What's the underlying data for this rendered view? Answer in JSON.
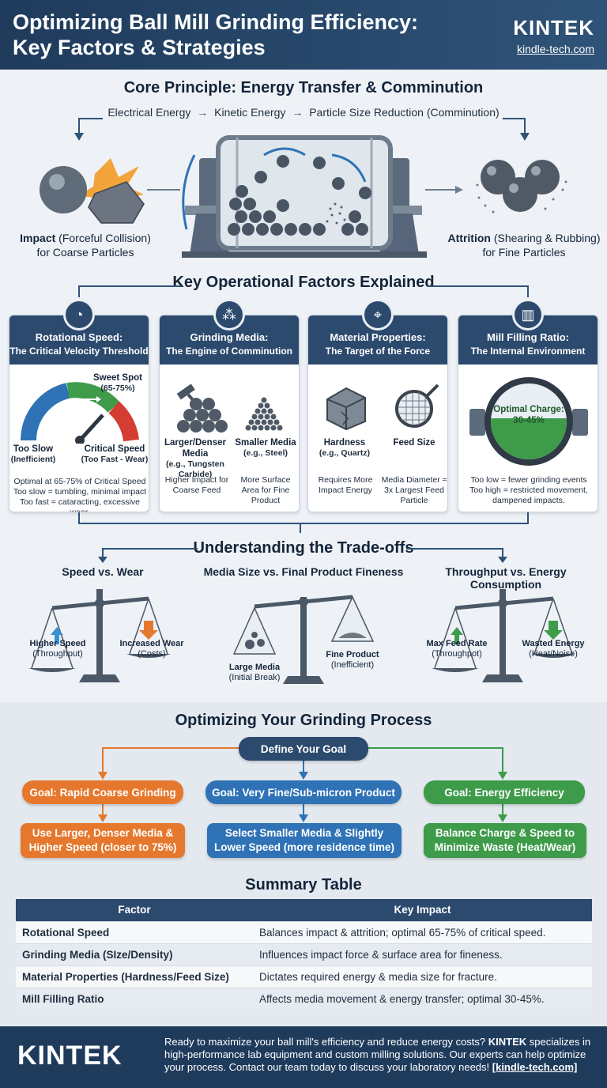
{
  "header": {
    "title_line1": "Optimizing Ball Mill Grinding Efficiency:",
    "title_line2": "Key Factors & Strategies",
    "brand": "KINTEK",
    "site": "kindle-tech.com"
  },
  "core": {
    "title": "Core Principle: Energy Transfer & Comminution",
    "chain": [
      "Electrical Energy",
      "Kinetic Energy",
      "Particle Size Reduction (Comminution)"
    ],
    "impact_bold": "Impact",
    "impact_rest": " (Forceful Collision)",
    "impact_line2": "for Coarse Particles",
    "attrition_bold": "Attrition",
    "attrition_rest": " (Shearing & Rubbing)",
    "attrition_line2": "for Fine Particles"
  },
  "factors": {
    "title": "Key Operational Factors Explained",
    "speed": {
      "title": "Rotational Speed:",
      "subtitle": "The Critical Velocity Threshold",
      "sweet": "Sweet Spot",
      "sweet_range": "(65-75%)",
      "slow": "Too Slow",
      "slow_sub": "(Inefficient)",
      "critical": "Critical Speed",
      "critical_sub": "(Too Fast - Wear)",
      "note1": "Optimal at 65-75% of Critical Speed",
      "note2": "Too slow = tumbling, minimal impact",
      "note3": "Too fast = cataracting, excessive wear."
    },
    "media": {
      "title": "Grinding Media:",
      "subtitle": "The Engine of Comminution",
      "large": "Larger/Denser Media",
      "large_sub": "(e.g., Tungsten Carbide)",
      "small": "Smaller Media",
      "small_sub": "(e.g., Steel)",
      "note_left": "Higher Impact for Coarse Feed",
      "note_right": "More Surface Area for Fine Product"
    },
    "material": {
      "title": "Material Properties:",
      "subtitle": "The Target of the Force",
      "hardness": "Hardness",
      "hardness_sub": "(e.g., Quartz)",
      "feed": "Feed Size",
      "note_left": "Requires More Impact Energy",
      "note_right": "Media Diameter ≈ 3x Largest Feed Particle"
    },
    "filling": {
      "title": "Mill Filling Ratio:",
      "subtitle": "The Internal Environment",
      "charge": "Optimal Charge:",
      "charge_range": "30-45%",
      "note1": "Too low = fewer grinding events",
      "note2": "Too high = restricted movement,",
      "note3": "dampened impacts."
    }
  },
  "tradeoffs": {
    "title": "Understanding the Trade-offs",
    "speed_wear": {
      "title": "Speed vs. Wear",
      "left": "Higher Speed",
      "left_sub": "(Throughput)",
      "right": "Increased Wear",
      "right_sub": "(Costs)"
    },
    "media_fine": {
      "title": "Media Size vs. Final Product Fineness",
      "left": "Large Media",
      "left_sub": "(Initial Break)",
      "right": "Fine Product",
      "right_sub": "(Inefficient)"
    },
    "throughput_energy": {
      "title": "Throughput vs. Energy Consumption",
      "left": "Max Feed Rate",
      "left_sub": "(Throughpot)",
      "right": "Wasted Energy",
      "right_sub": "(Heat/Noise)"
    }
  },
  "optimize": {
    "title": "Optimizing Your Grinding Process",
    "goal": "Define Your Goal",
    "goal1": "Goal: Rapid Coarse Grinding",
    "action1_l1": "Use Larger, Denser Media &",
    "action1_l2": "Higher Speed (closer to 75%)",
    "goal2": "Goal: Very Fine/Sub-micron Product",
    "action2_l1": "Select Smaller Media & Slightly",
    "action2_l2": "Lower Speed (more residence time)",
    "goal3": "Goal: Energy Efficiency",
    "action3_l1": "Balance Charge & Speed to",
    "action3_l2": "Minimize Waste (Heat/Wear)"
  },
  "summary": {
    "title": "Summary Table",
    "headers": [
      "Factor",
      "Key Impact"
    ],
    "rows": [
      [
        "Rotational Speed",
        "Balances impact & attrition; optimal 65-75% of critical speed."
      ],
      [
        "Grinding Media (SIze/Density)",
        "Influences impact force & surface area for fineness."
      ],
      [
        "Material Properties (Hardness/Feed Size)",
        "Dictates required energy & media size for fracture."
      ],
      [
        "Mill Filling Ratio",
        "Affects media movement & energy transfer; optimal 30-45%."
      ]
    ]
  },
  "footer": {
    "brand": "KINTEK",
    "text1": "Ready to maximize your ball mill's efficiency and reduce energy costs? ",
    "text_brand": "KINTEK",
    "text2": " specializes in high-performance lab equipment and custom milling solutions. Our experts can help optimize your process. Contact our team today to discuss your laboratory needs! ",
    "link": "[kindle-tech.com]"
  },
  "colors": {
    "navy": "#2c4a6e",
    "orange": "#e6782d",
    "blue": "#2f73b6",
    "green": "#3e9b4a"
  }
}
